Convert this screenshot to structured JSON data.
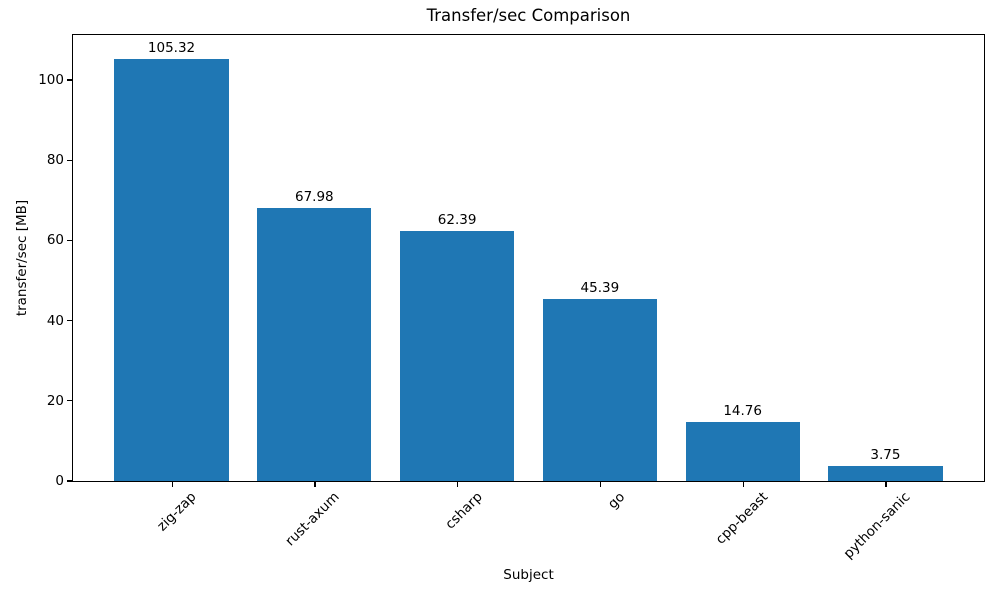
{
  "chart_data": {
    "type": "bar",
    "title": "Transfer/sec Comparison",
    "xlabel": "Subject",
    "ylabel": "transfer/sec [MB]",
    "categories": [
      "zig-zap",
      "rust-axum",
      "csharp",
      "go",
      "cpp-beast",
      "python-sanic"
    ],
    "values": [
      105.32,
      67.98,
      62.39,
      45.39,
      14.76,
      3.75
    ],
    "bar_labels": [
      "105.32",
      "67.98",
      "62.39",
      "45.39",
      "14.76",
      "3.75"
    ],
    "yticks": [
      0,
      20,
      40,
      60,
      80,
      100
    ],
    "ylim": [
      0,
      111.2
    ],
    "bar_color": "#1f77b4",
    "grid": false,
    "legend": null,
    "x_tick_rotation": 45,
    "background_color": "#ffffff",
    "spine_color": "#000000"
  }
}
